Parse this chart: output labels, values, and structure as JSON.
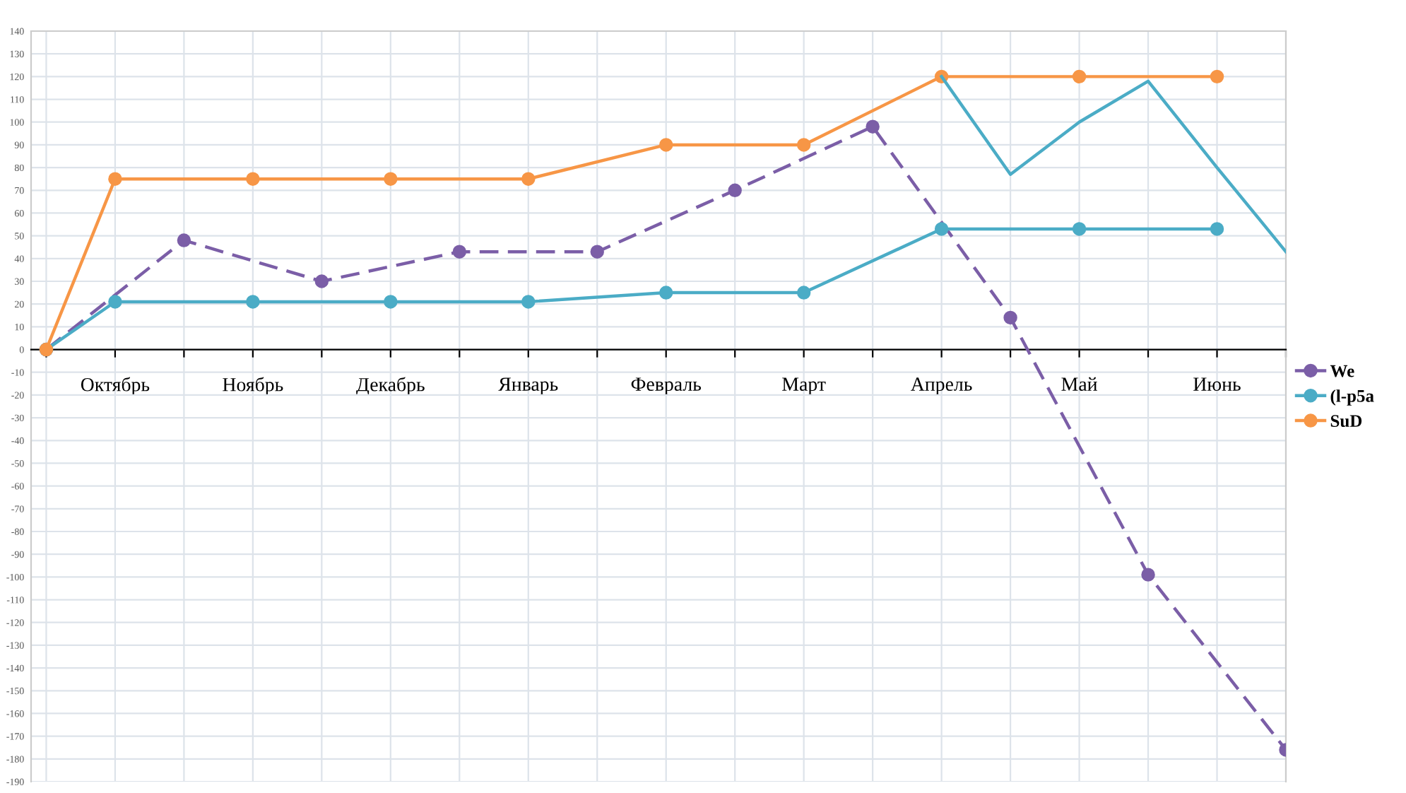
{
  "chart_data": {
    "type": "line",
    "categories": [
      null,
      "Октябрь",
      null,
      "Ноябрь",
      null,
      "Декабрь",
      null,
      "Январь",
      null,
      "Февраль",
      null,
      "Март",
      null,
      "Апрель",
      null,
      "Май",
      null,
      "Июнь",
      null
    ],
    "series": [
      {
        "name": "We",
        "color": "#7b5ea7",
        "line_style": "dashed",
        "values": [
          0,
          null,
          48,
          null,
          30,
          null,
          43,
          null,
          43,
          null,
          70,
          null,
          98,
          null,
          14,
          null,
          -99,
          null,
          -176
        ]
      },
      {
        "name": "(l-p5a",
        "color": "#4bacc6",
        "values": [
          0,
          21,
          null,
          21,
          null,
          21,
          null,
          21,
          null,
          25,
          null,
          25,
          null,
          53,
          null,
          53,
          null,
          53,
          null
        ]
      },
      {
        "name": "SuD",
        "color": "#f79646",
        "values": [
          0,
          75,
          null,
          75,
          null,
          75,
          null,
          75,
          null,
          90,
          null,
          90,
          null,
          120,
          null,
          120,
          null,
          120,
          null
        ]
      },
      {
        "color": "#4bacc6",
        "marker": "none",
        "values": [
          null,
          null,
          null,
          null,
          null,
          null,
          null,
          null,
          null,
          null,
          null,
          null,
          null,
          120,
          77,
          100,
          118,
          80,
          43
        ]
      }
    ],
    "ylim": [
      -190,
      140
    ],
    "yticks": [
      -190,
      -180,
      -170,
      -160,
      -150,
      -140,
      -130,
      -120,
      -110,
      -100,
      -90,
      -80,
      -70,
      -60,
      -50,
      -40,
      -30,
      -20,
      -10,
      0,
      10,
      20,
      30,
      40,
      50,
      60,
      70,
      80,
      90,
      100,
      110,
      120,
      130,
      140
    ],
    "grid": true,
    "legend": "right",
    "marker": "circle",
    "line_style": "solid"
  }
}
